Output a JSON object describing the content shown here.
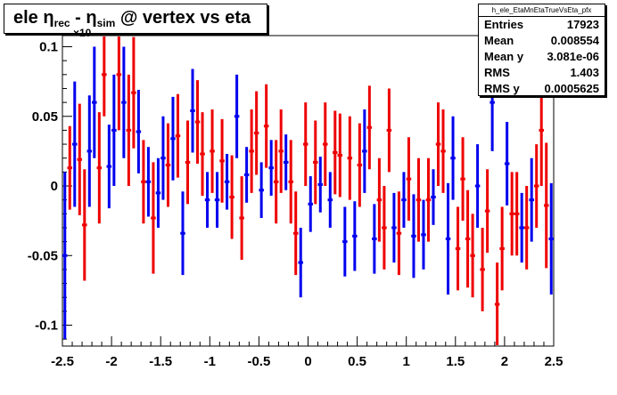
{
  "title": {
    "main": "ele η",
    "sub1": "rec",
    "mid": " - η",
    "sub2": "sim",
    "tail": " @ vertex vs eta"
  },
  "stats": {
    "name": "h_ele_EtaMnEtaTrueVsEta_pfx",
    "rows": [
      {
        "label": "Entries",
        "value": "17923"
      },
      {
        "label": "Mean",
        "value": "0.008554"
      },
      {
        "label": "Mean y",
        "value": "3.081e-06"
      },
      {
        "label": "RMS",
        "value": "1.403"
      },
      {
        "label": "RMS y",
        "value": "0.0005625"
      }
    ]
  },
  "chart_data": {
    "type": "scatter",
    "xlim": [
      -2.5,
      2.5
    ],
    "ylim": [
      -0.115,
      0.108
    ],
    "y_scale_label": "×10",
    "xticks": [
      -2.5,
      -2,
      -1.5,
      -1,
      -0.5,
      0,
      0.5,
      1,
      1.5,
      2,
      2.5
    ],
    "yticks": [
      -0.1,
      -0.05,
      0,
      0.05,
      0.1
    ],
    "ytick_labels": [
      "-0.1",
      "-0.05",
      "0",
      "0.05",
      "0.1"
    ],
    "grid": false,
    "colors": {
      "blue": "#0000ee",
      "red": "#ee0000"
    },
    "points": [
      {
        "x": -2.475,
        "y": -0.05,
        "err": 0.06,
        "color": "blue"
      },
      {
        "x": -2.425,
        "y": 0.013,
        "err": 0.03,
        "color": "red"
      },
      {
        "x": -2.375,
        "y": 0.03,
        "err": 0.045,
        "color": "blue"
      },
      {
        "x": -2.325,
        "y": 0.019,
        "err": 0.04,
        "color": "red"
      },
      {
        "x": -2.275,
        "y": -0.028,
        "err": 0.04,
        "color": "red"
      },
      {
        "x": -2.225,
        "y": 0.025,
        "err": 0.04,
        "color": "blue"
      },
      {
        "x": -2.175,
        "y": 0.06,
        "err": 0.04,
        "color": "blue"
      },
      {
        "x": -2.125,
        "y": 0.013,
        "err": 0.04,
        "color": "red"
      },
      {
        "x": -2.075,
        "y": 0.08,
        "err": 0.03,
        "color": "red"
      },
      {
        "x": -2.025,
        "y": 0.014,
        "err": 0.03,
        "color": "blue"
      },
      {
        "x": -1.975,
        "y": 0.04,
        "err": 0.04,
        "color": "blue"
      },
      {
        "x": -1.925,
        "y": 0.08,
        "err": 0.04,
        "color": "red"
      },
      {
        "x": -1.875,
        "y": 0.06,
        "err": 0.04,
        "color": "blue"
      },
      {
        "x": -1.825,
        "y": 0.04,
        "err": 0.04,
        "color": "red"
      },
      {
        "x": -1.775,
        "y": 0.067,
        "err": 0.04,
        "color": "red"
      },
      {
        "x": -1.725,
        "y": 0.039,
        "err": 0.03,
        "color": "blue"
      },
      {
        "x": -1.675,
        "y": 0.003,
        "err": 0.03,
        "color": "red"
      },
      {
        "x": -1.625,
        "y": 0.003,
        "err": 0.025,
        "color": "blue"
      },
      {
        "x": -1.575,
        "y": -0.023,
        "err": 0.04,
        "color": "red"
      },
      {
        "x": -1.525,
        "y": -0.005,
        "err": 0.025,
        "color": "blue"
      },
      {
        "x": -1.475,
        "y": 0.02,
        "err": 0.03,
        "color": "blue"
      },
      {
        "x": -1.425,
        "y": 0.015,
        "err": 0.03,
        "color": "red"
      },
      {
        "x": -1.375,
        "y": 0.034,
        "err": 0.03,
        "color": "blue"
      },
      {
        "x": -1.325,
        "y": 0.036,
        "err": 0.03,
        "color": "red"
      },
      {
        "x": -1.275,
        "y": -0.034,
        "err": 0.03,
        "color": "blue"
      },
      {
        "x": -1.225,
        "y": 0.017,
        "err": 0.03,
        "color": "red"
      },
      {
        "x": -1.175,
        "y": 0.054,
        "err": 0.03,
        "color": "blue"
      },
      {
        "x": -1.125,
        "y": 0.046,
        "err": 0.03,
        "color": "red"
      },
      {
        "x": -1.075,
        "y": 0.023,
        "err": 0.03,
        "color": "red"
      },
      {
        "x": -1.025,
        "y": -0.01,
        "err": 0.02,
        "color": "blue"
      },
      {
        "x": -0.975,
        "y": 0.025,
        "err": 0.03,
        "color": "red"
      },
      {
        "x": -0.925,
        "y": -0.01,
        "err": 0.02,
        "color": "blue"
      },
      {
        "x": -0.875,
        "y": 0.018,
        "err": 0.03,
        "color": "red"
      },
      {
        "x": -0.825,
        "y": 0.003,
        "err": 0.02,
        "color": "blue"
      },
      {
        "x": -0.775,
        "y": -0.008,
        "err": 0.03,
        "color": "red"
      },
      {
        "x": -0.725,
        "y": 0.05,
        "err": 0.03,
        "color": "blue"
      },
      {
        "x": -0.675,
        "y": -0.023,
        "err": 0.03,
        "color": "red"
      },
      {
        "x": -0.625,
        "y": 0.008,
        "err": 0.02,
        "color": "blue"
      },
      {
        "x": -0.575,
        "y": 0.025,
        "err": 0.03,
        "color": "red"
      },
      {
        "x": -0.525,
        "y": 0.038,
        "err": 0.03,
        "color": "red"
      },
      {
        "x": -0.475,
        "y": -0.003,
        "err": 0.02,
        "color": "blue"
      },
      {
        "x": -0.425,
        "y": 0.043,
        "err": 0.03,
        "color": "red"
      },
      {
        "x": -0.375,
        "y": 0.013,
        "err": 0.02,
        "color": "blue"
      },
      {
        "x": -0.325,
        "y": 0.003,
        "err": 0.03,
        "color": "red"
      },
      {
        "x": -0.275,
        "y": 0.025,
        "err": 0.03,
        "color": "red"
      },
      {
        "x": -0.225,
        "y": 0.017,
        "err": 0.02,
        "color": "blue"
      },
      {
        "x": -0.175,
        "y": 0.003,
        "err": 0.03,
        "color": "red"
      },
      {
        "x": -0.125,
        "y": -0.034,
        "err": 0.03,
        "color": "red"
      },
      {
        "x": -0.075,
        "y": -0.055,
        "err": 0.025,
        "color": "blue"
      },
      {
        "x": -0.025,
        "y": 0.03,
        "err": 0.03,
        "color": "red"
      },
      {
        "x": 0.025,
        "y": -0.013,
        "err": 0.02,
        "color": "blue"
      },
      {
        "x": 0.075,
        "y": 0.017,
        "err": 0.03,
        "color": "red"
      },
      {
        "x": 0.125,
        "y": 0.001,
        "err": 0.02,
        "color": "blue"
      },
      {
        "x": 0.175,
        "y": 0.03,
        "err": 0.03,
        "color": "red"
      },
      {
        "x": 0.225,
        "y": -0.01,
        "err": 0.02,
        "color": "blue"
      },
      {
        "x": 0.275,
        "y": 0.024,
        "err": 0.03,
        "color": "red"
      },
      {
        "x": 0.325,
        "y": 0.022,
        "err": 0.03,
        "color": "red"
      },
      {
        "x": 0.375,
        "y": -0.04,
        "err": 0.025,
        "color": "blue"
      },
      {
        "x": 0.425,
        "y": 0.02,
        "err": 0.03,
        "color": "red"
      },
      {
        "x": 0.475,
        "y": -0.036,
        "err": 0.025,
        "color": "blue"
      },
      {
        "x": 0.525,
        "y": 0.015,
        "err": 0.03,
        "color": "red"
      },
      {
        "x": 0.575,
        "y": 0.025,
        "err": 0.03,
        "color": "blue"
      },
      {
        "x": 0.625,
        "y": 0.042,
        "err": 0.03,
        "color": "red"
      },
      {
        "x": 0.675,
        "y": -0.038,
        "err": 0.025,
        "color": "blue"
      },
      {
        "x": 0.725,
        "y": -0.01,
        "err": 0.03,
        "color": "red"
      },
      {
        "x": 0.775,
        "y": -0.03,
        "err": 0.03,
        "color": "red"
      },
      {
        "x": 0.825,
        "y": 0.04,
        "err": 0.03,
        "color": "red"
      },
      {
        "x": 0.875,
        "y": -0.03,
        "err": 0.025,
        "color": "blue"
      },
      {
        "x": 0.925,
        "y": -0.034,
        "err": 0.03,
        "color": "red"
      },
      {
        "x": 0.975,
        "y": -0.01,
        "err": 0.02,
        "color": "blue"
      },
      {
        "x": 1.025,
        "y": 0.005,
        "err": 0.03,
        "color": "red"
      },
      {
        "x": 1.075,
        "y": -0.036,
        "err": 0.03,
        "color": "blue"
      },
      {
        "x": 1.125,
        "y": -0.01,
        "err": 0.03,
        "color": "red"
      },
      {
        "x": 1.175,
        "y": -0.035,
        "err": 0.025,
        "color": "blue"
      },
      {
        "x": 1.225,
        "y": -0.01,
        "err": 0.03,
        "color": "red"
      },
      {
        "x": 1.275,
        "y": -0.008,
        "err": 0.02,
        "color": "blue"
      },
      {
        "x": 1.325,
        "y": 0.03,
        "err": 0.03,
        "color": "red"
      },
      {
        "x": 1.375,
        "y": 0.025,
        "err": 0.03,
        "color": "red"
      },
      {
        "x": 1.425,
        "y": -0.038,
        "err": 0.04,
        "color": "blue"
      },
      {
        "x": 1.475,
        "y": 0.02,
        "err": 0.03,
        "color": "blue"
      },
      {
        "x": 1.525,
        "y": -0.045,
        "err": 0.03,
        "color": "red"
      },
      {
        "x": 1.575,
        "y": 0.005,
        "err": 0.03,
        "color": "red"
      },
      {
        "x": 1.625,
        "y": -0.038,
        "err": 0.035,
        "color": "red"
      },
      {
        "x": 1.675,
        "y": -0.05,
        "err": 0.03,
        "color": "red"
      },
      {
        "x": 1.725,
        "y": 0.0,
        "err": 0.03,
        "color": "blue"
      },
      {
        "x": 1.775,
        "y": -0.06,
        "err": 0.03,
        "color": "red"
      },
      {
        "x": 1.825,
        "y": -0.018,
        "err": 0.03,
        "color": "red"
      },
      {
        "x": 1.875,
        "y": 0.06,
        "err": 0.035,
        "color": "blue"
      },
      {
        "x": 1.925,
        "y": -0.085,
        "err": 0.03,
        "color": "red"
      },
      {
        "x": 1.975,
        "y": -0.045,
        "err": 0.03,
        "color": "red"
      },
      {
        "x": 2.025,
        "y": 0.016,
        "err": 0.03,
        "color": "blue"
      },
      {
        "x": 2.075,
        "y": -0.02,
        "err": 0.03,
        "color": "red"
      },
      {
        "x": 2.125,
        "y": -0.02,
        "err": 0.03,
        "color": "red"
      },
      {
        "x": 2.175,
        "y": -0.03,
        "err": 0.025,
        "color": "blue"
      },
      {
        "x": 2.225,
        "y": -0.03,
        "err": 0.03,
        "color": "red"
      },
      {
        "x": 2.275,
        "y": -0.01,
        "err": 0.03,
        "color": "blue"
      },
      {
        "x": 2.325,
        "y": 0.0,
        "err": 0.03,
        "color": "red"
      },
      {
        "x": 2.375,
        "y": 0.04,
        "err": 0.04,
        "color": "red"
      },
      {
        "x": 2.425,
        "y": -0.014,
        "err": 0.045,
        "color": "red"
      },
      {
        "x": 2.475,
        "y": -0.038,
        "err": 0.04,
        "color": "blue"
      }
    ]
  }
}
